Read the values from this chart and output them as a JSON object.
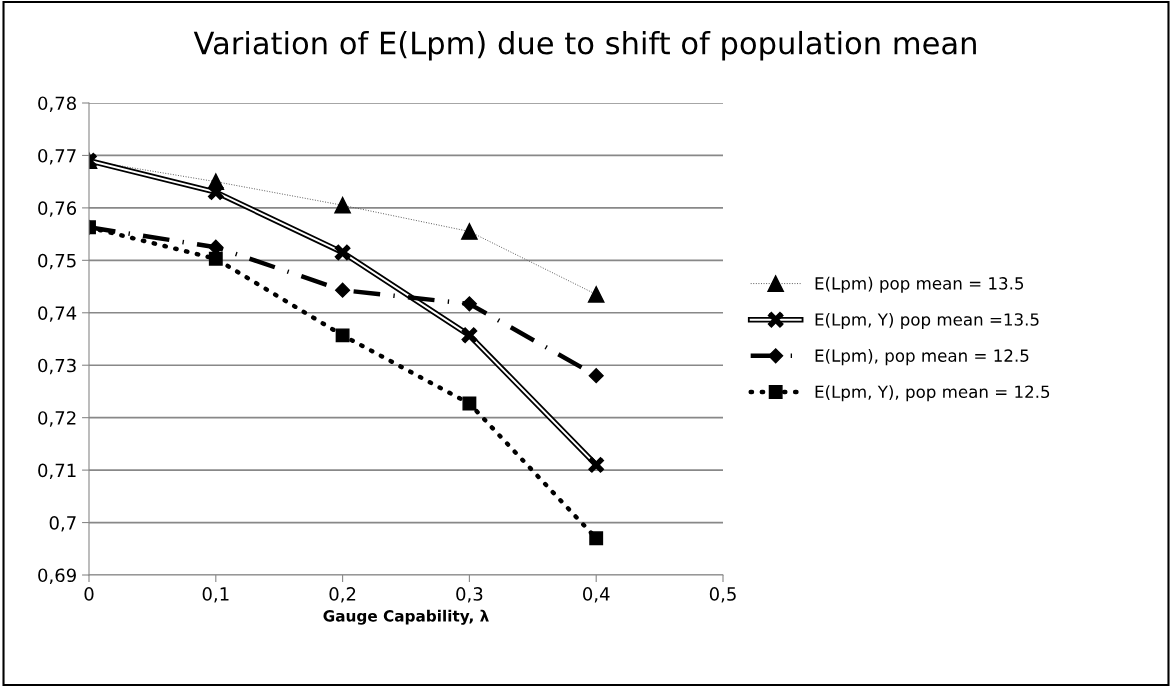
{
  "chart_data": {
    "type": "line",
    "title": "Variation of E(Lpm) due to shift of population mean",
    "xlabel": "Gauge Capability, λ",
    "x": [
      0,
      0.1,
      0.2,
      0.3,
      0.4
    ],
    "series": [
      {
        "name": "E(Lpm) pop mean = 13.5",
        "color": "#000000",
        "marker": "triangle",
        "line_style": "dotted",
        "values": [
          0.769,
          0.765,
          0.7605,
          0.7555,
          0.7435
        ]
      },
      {
        "name": "E(Lpm, Y) pop mean =13.5",
        "color": "#000000",
        "marker": "cross",
        "line_style": "solid",
        "values": [
          0.769,
          0.763,
          0.7515,
          0.7357,
          0.711
        ]
      },
      {
        "name": "E(Lpm), pop mean = 12.5",
        "color": "#000000",
        "marker": "diamond",
        "line_style": "dashdot",
        "values": [
          0.7563,
          0.7525,
          0.7443,
          0.7417,
          0.728
        ]
      },
      {
        "name": "E(Lpm, Y), pop mean = 12.5",
        "color": "#000000",
        "marker": "square",
        "line_style": "dotted",
        "values": [
          0.7563,
          0.7503,
          0.7357,
          0.7227,
          0.697
        ]
      }
    ],
    "xlim": [
      0,
      0.5
    ],
    "xticks": [
      {
        "value": 0,
        "label": "0"
      },
      {
        "value": 0.1,
        "label": "0,1"
      },
      {
        "value": 0.2,
        "label": "0,2"
      },
      {
        "value": 0.3,
        "label": "0,3"
      },
      {
        "value": 0.4,
        "label": "0,4"
      },
      {
        "value": 0.5,
        "label": "0,5"
      }
    ],
    "ylim": [
      0.69,
      0.78
    ],
    "yticks": [
      {
        "value": 0.69,
        "label": "0,69"
      },
      {
        "value": 0.7,
        "label": "0,7"
      },
      {
        "value": 0.71,
        "label": "0,71"
      },
      {
        "value": 0.72,
        "label": "0,72"
      },
      {
        "value": 0.73,
        "label": "0,73"
      },
      {
        "value": 0.74,
        "label": "0,74"
      },
      {
        "value": 0.75,
        "label": "0,75"
      },
      {
        "value": 0.76,
        "label": "0,76"
      },
      {
        "value": 0.77,
        "label": "0,77"
      },
      {
        "value": 0.78,
        "label": "0,78"
      }
    ],
    "grid": "y",
    "legend": "right"
  }
}
